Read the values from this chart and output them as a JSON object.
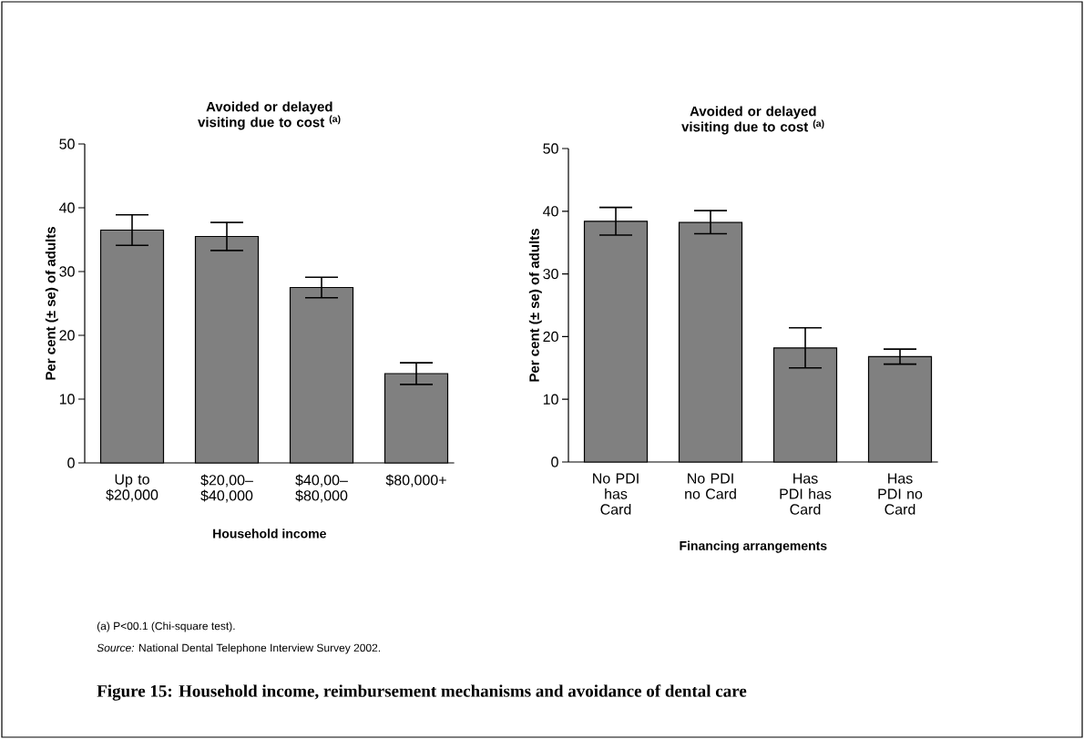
{
  "chart_data": [
    {
      "type": "bar",
      "title": "Avoided or delayed visiting due to cost $^{(a)}$",
      "xlabel": "Household income",
      "ylabel": "Per cent (± se) of adults",
      "categories": [
        "Up to $20,000",
        "$20,00– $40,000",
        "$40,00– $80,000",
        "$80,000+"
      ],
      "values": [
        36.5,
        35.5,
        27.5,
        14.0
      ],
      "errors": [
        [
          34.1,
          38.9
        ],
        [
          33.3,
          37.7
        ],
        [
          25.9,
          29.1
        ],
        [
          12.3,
          15.7
        ]
      ],
      "color": "#808080",
      "ylim": [
        0,
        50
      ],
      "yticks": [
        0,
        10,
        20,
        30,
        40,
        50
      ],
      "annotations": [
        "(a) P<00.1 (Chi-square test).",
        "*Source:* National Dental Telephone Interview Survey 2002.",
        "**Figure 15: Household income, reimbursement mechanisms and avoidance of dental care**"
      ]
    },
    {
      "type": "bar",
      "title": "Avoided or delayed visiting due to cost $^{(a)}$",
      "xlabel": "Financing arrangements",
      "ylabel": "Per cent (± se) of adults",
      "categories": [
        "No PDI has Card",
        "No PDI no Card",
        "Has PDI has Card",
        "Has PDI no Card"
      ],
      "values": [
        38.4,
        38.2,
        18.2,
        16.8
      ],
      "errors": [
        [
          36.2,
          40.6
        ],
        [
          36.4,
          40.1
        ],
        [
          15.0,
          21.4
        ],
        [
          15.6,
          18.0
        ]
      ],
      "color": "#808080",
      "ylim": [
        0,
        50
      ],
      "yticks": [
        0,
        10,
        20,
        30,
        40,
        50
      ]
    }
  ]
}
